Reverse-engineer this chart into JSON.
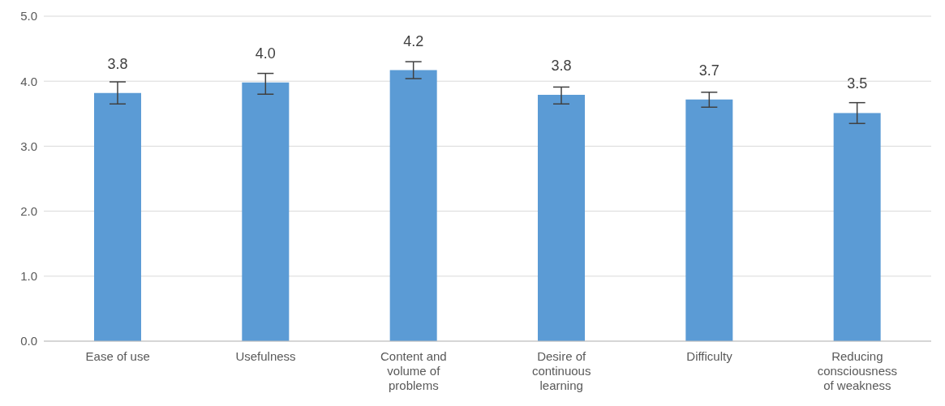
{
  "chart_data": {
    "type": "bar",
    "categories": [
      "Ease of use",
      "Usefulness",
      "Content and volume of problems",
      "Desire of continuous learning",
      "Difficulty",
      "Reducing consciousness of weakness"
    ],
    "values": [
      3.82,
      3.98,
      4.17,
      3.79,
      3.72,
      3.51
    ],
    "value_labels": [
      "3.8",
      "4.0",
      "4.2",
      "3.8",
      "3.7",
      "3.5"
    ],
    "errors": [
      [
        3.65,
        3.99
      ],
      [
        3.8,
        4.12
      ],
      [
        4.04,
        4.3
      ],
      [
        3.65,
        3.91
      ],
      [
        3.6,
        3.83
      ],
      [
        3.35,
        3.67
      ]
    ],
    "color": "#5b9bd5",
    "ylim": [
      0,
      5
    ],
    "yticks": [
      {
        "value": 0,
        "label": "0.0"
      },
      {
        "value": 1,
        "label": "1.0"
      },
      {
        "value": 2,
        "label": "2.0"
      },
      {
        "value": 3,
        "label": "3.0"
      },
      {
        "value": 4,
        "label": "4.0"
      },
      {
        "value": 5,
        "label": "5.0"
      }
    ],
    "grid": "y"
  }
}
